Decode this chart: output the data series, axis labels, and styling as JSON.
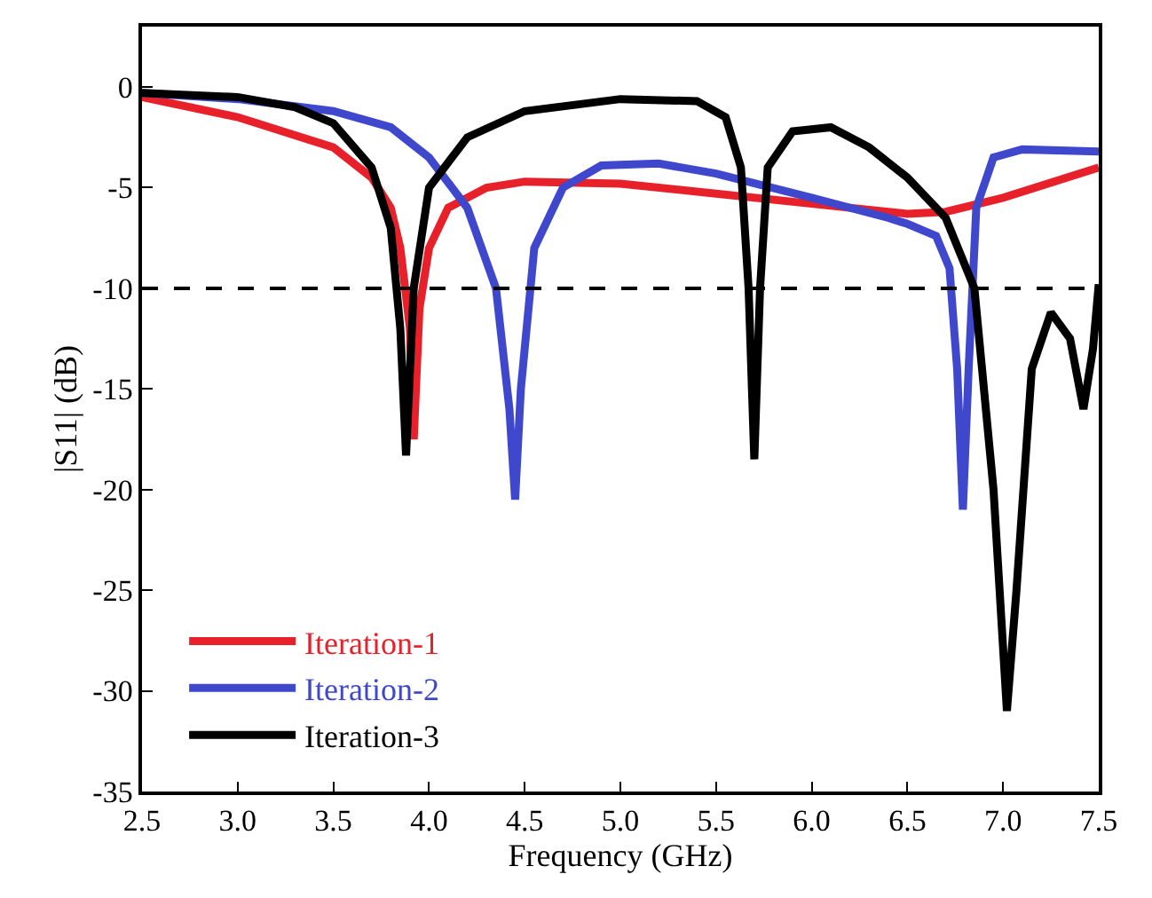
{
  "chart_data": {
    "type": "line",
    "xlabel": "Frequency (GHz)",
    "ylabel": "|S11| (dB)",
    "xlim": [
      2.5,
      7.5
    ],
    "ylim": [
      -35,
      3
    ],
    "xticks": [
      2.5,
      {
        "value": 3,
        "label": "3.0"
      },
      3.5,
      {
        "value": 4,
        "label": "4.0"
      },
      4.5,
      {
        "value": 5,
        "label": "5.0"
      },
      5.5,
      {
        "value": 6,
        "label": "6.0"
      },
      6.5,
      {
        "value": 7,
        "label": "7.0"
      },
      7.5
    ],
    "yticks": [
      0,
      -5,
      -10,
      -15,
      -20,
      -25,
      -30,
      -35
    ],
    "legend": "bottom left",
    "line_style": "solid",
    "marker": "none",
    "ref_lines": [
      {
        "axis": "y",
        "value": -10,
        "color": "#000000",
        "line_style": "dashed"
      }
    ],
    "series": [
      {
        "name": "Iteration-1",
        "color": "#e8202a",
        "x": [
          2.5,
          3.0,
          3.5,
          3.7,
          3.8,
          3.85,
          3.9,
          3.92,
          3.95,
          4.0,
          4.1,
          4.3,
          4.5,
          5.0,
          5.5,
          6.0,
          6.5,
          6.7,
          7.0,
          7.5
        ],
        "values": [
          -0.5,
          -1.5,
          -3,
          -4.5,
          -6,
          -8,
          -12,
          -17.5,
          -11,
          -8,
          -6,
          -5,
          -4.7,
          -4.8,
          -5.3,
          -5.8,
          -6.3,
          -6.2,
          -5.5,
          -4
        ]
      },
      {
        "name": "Iteration-2",
        "color": "#3f48cc",
        "x": [
          2.5,
          3.0,
          3.5,
          3.8,
          4.0,
          4.2,
          4.35,
          4.42,
          4.45,
          4.48,
          4.55,
          4.7,
          4.9,
          5.2,
          5.5,
          6.0,
          6.4,
          6.5,
          6.65,
          6.72,
          6.76,
          6.79,
          6.82,
          6.86,
          6.95,
          7.1,
          7.5
        ],
        "values": [
          -0.3,
          -0.6,
          -1.2,
          -2,
          -3.5,
          -6,
          -10,
          -16,
          -20.5,
          -15,
          -8,
          -5,
          -3.9,
          -3.8,
          -4.3,
          -5.5,
          -6.5,
          -6.8,
          -7.4,
          -9,
          -14,
          -21,
          -14,
          -6,
          -3.5,
          -3.1,
          -3.2
        ]
      },
      {
        "name": "Iteration-3",
        "color": "#000000",
        "x": [
          2.5,
          3.0,
          3.3,
          3.5,
          3.7,
          3.8,
          3.85,
          3.88,
          3.92,
          4.0,
          4.2,
          4.5,
          5.0,
          5.4,
          5.55,
          5.63,
          5.67,
          5.7,
          5.73,
          5.77,
          5.9,
          6.1,
          6.3,
          6.5,
          6.7,
          6.85,
          6.95,
          7.02,
          7.07,
          7.15,
          7.25,
          7.35,
          7.42,
          7.47,
          7.5
        ],
        "values": [
          -0.3,
          -0.5,
          -1,
          -1.8,
          -4,
          -7,
          -12,
          -18.3,
          -10,
          -5,
          -2.5,
          -1.2,
          -0.6,
          -0.7,
          -1.5,
          -4,
          -10,
          -18.5,
          -10,
          -4,
          -2.2,
          -2,
          -3,
          -4.5,
          -6.5,
          -10,
          -20,
          -31,
          -25,
          -14,
          -11.2,
          -12.5,
          -16,
          -13,
          -9.8
        ]
      }
    ]
  }
}
